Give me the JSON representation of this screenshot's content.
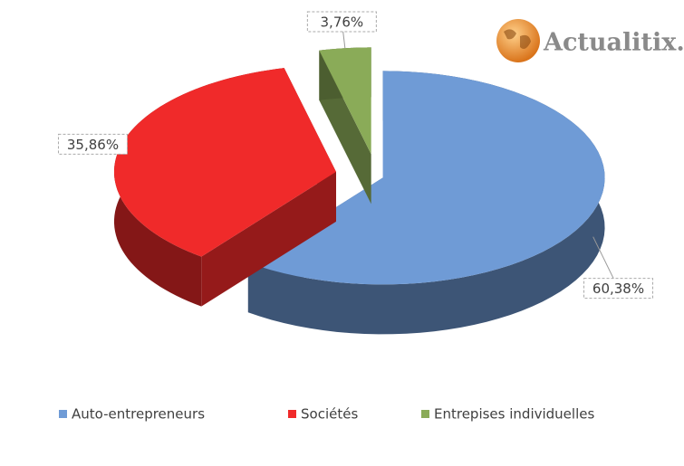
{
  "logo": "Actualitix.",
  "chart_data": {
    "type": "pie",
    "categories": [
      "Auto-entrepreneurs",
      "Sociétés",
      "Entrepises individuelles"
    ],
    "values": [
      60.38,
      35.86,
      3.76
    ],
    "value_labels": [
      "60,38%",
      "35,86%",
      "3,76%"
    ],
    "colors": [
      "#6f9bd6",
      "#f02a2a",
      "#8aab58"
    ],
    "legend": "bottom"
  }
}
